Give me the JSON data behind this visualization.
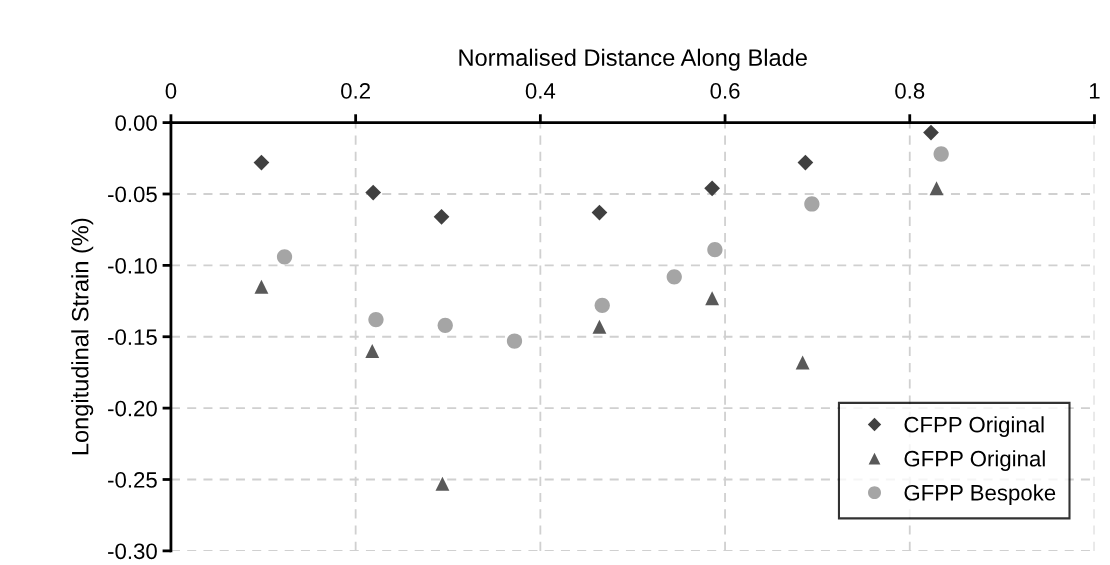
{
  "chart_data": {
    "type": "scatter",
    "xlabel": "Normalised Distance Along Blade",
    "ylabel": "Longitudinal Strain (%)",
    "xlim": [
      0,
      1
    ],
    "xticks": [
      0,
      0.2,
      0.4,
      0.6,
      0.8,
      1
    ],
    "ylim": [
      -0.3,
      0
    ],
    "yticks": [
      {
        "value": 0,
        "label": "0.00"
      },
      {
        "value": -0.05,
        "label": "-0.05"
      },
      {
        "value": -0.1,
        "label": "-0.10"
      },
      {
        "value": -0.15,
        "label": "-0.15"
      },
      {
        "value": -0.2,
        "label": "-0.20"
      },
      {
        "value": -0.25,
        "label": "-0.25"
      },
      {
        "value": -0.3,
        "label": "-0.30"
      }
    ],
    "grid": true,
    "legend": "bottom right",
    "series": [
      {
        "name": "CFPP Original",
        "color": "#404040",
        "marker": "diamond",
        "x": [
          0.098,
          0.219,
          0.293,
          0.464,
          0.586,
          0.687,
          0.823
        ],
        "values": [
          -0.028,
          -0.049,
          -0.066,
          -0.063,
          -0.046,
          -0.028,
          -0.007
        ]
      },
      {
        "name": "GFPP Original",
        "color": "#595959",
        "marker": "triangle",
        "x": [
          0.098,
          0.218,
          0.294,
          0.464,
          0.586,
          0.684,
          0.829
        ],
        "values": [
          -0.115,
          -0.16,
          -0.253,
          -0.143,
          -0.123,
          -0.168,
          -0.046
        ]
      },
      {
        "name": "GFPP Bespoke",
        "color": "#a5a5a5",
        "marker": "circle",
        "x": [
          0.123,
          0.222,
          0.297,
          0.372,
          0.467,
          0.545,
          0.589,
          0.694,
          0.834
        ],
        "values": [
          -0.094,
          -0.138,
          -0.142,
          -0.153,
          -0.128,
          -0.108,
          -0.089,
          -0.057,
          -0.022
        ]
      }
    ]
  }
}
